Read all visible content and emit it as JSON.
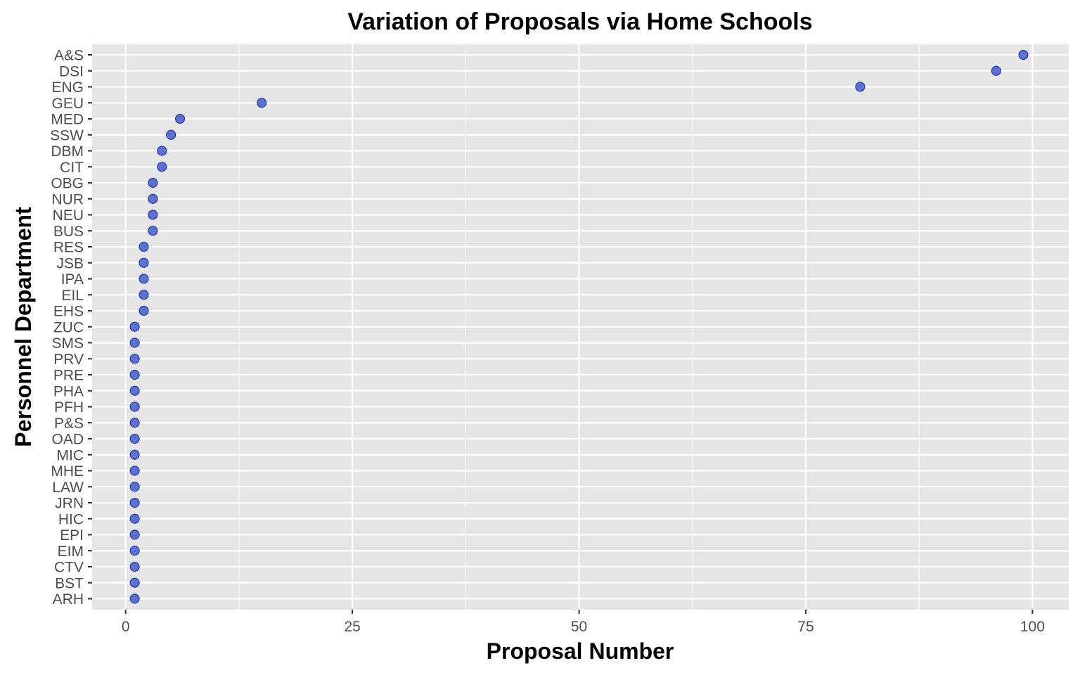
{
  "chart_data": {
    "type": "scatter",
    "title": "Variation of Proposals via Home Schools",
    "xlabel": "Proposal Number",
    "ylabel": "Personnel Department",
    "xlim": [
      -3.7,
      104.0
    ],
    "xticks": [
      0,
      25,
      50,
      75,
      100
    ],
    "grid": true,
    "point_color": "#4c63cf",
    "panel_background": "#e5e5e5",
    "grid_color": "#ffffff",
    "categories": [
      "A&S",
      "DSI",
      "ENG",
      "GEU",
      "MED",
      "SSW",
      "DBM",
      "CIT",
      "OBG",
      "NUR",
      "NEU",
      "BUS",
      "RES",
      "JSB",
      "IPA",
      "EIL",
      "EHS",
      "ZUC",
      "SMS",
      "PRV",
      "PRE",
      "PHA",
      "PFH",
      "P&S",
      "OAD",
      "MIC",
      "MHE",
      "LAW",
      "JRN",
      "HIC",
      "EPI",
      "EIM",
      "CTV",
      "BST",
      "ARH"
    ],
    "values": [
      99,
      96,
      81,
      15,
      6,
      5,
      4,
      4,
      3,
      3,
      3,
      3,
      2,
      2,
      2,
      2,
      2,
      1,
      1,
      1,
      1,
      1,
      1,
      1,
      1,
      1,
      1,
      1,
      1,
      1,
      1,
      1,
      1,
      1,
      1
    ]
  }
}
